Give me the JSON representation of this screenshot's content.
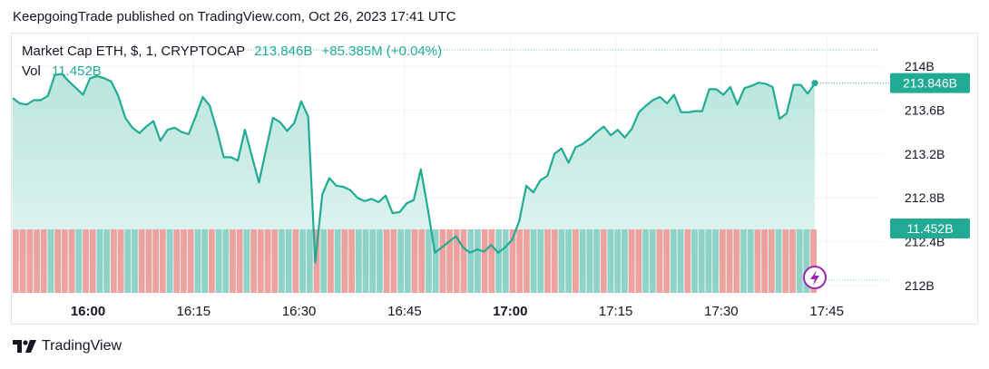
{
  "header": {
    "text": "KeepgoingTrade published on TradingView.com, Oct 26, 2023 17:41 UTC"
  },
  "legend": {
    "symbol": "Market Cap ETH, $, 1, CRYPTOCAP",
    "price": "213.846B",
    "change": "+85.385M (+0.04%)",
    "vol_label": "Vol",
    "vol_value": "11.452B"
  },
  "badges": {
    "price": "213.846B",
    "volume": "11.452B"
  },
  "footer": {
    "brand": "TradingView"
  },
  "colors": {
    "line": "#22ab94",
    "area_top": "#b9e6dc",
    "area_bottom": "#e9f7f4",
    "vol_up": "#8fd3c8",
    "vol_down": "#eea29f",
    "grid": "#f0f3fa",
    "badge": "#22ab94",
    "flash_icon": "#9c27b0"
  },
  "icons": {
    "flash": "lightning-icon",
    "logo": "tradingview-logo-icon"
  },
  "chart_data": {
    "type": "area",
    "x_unit": "minutes (UTC, Oct 26, 2023)",
    "x_ticks": [
      "16:00",
      "16:15",
      "16:30",
      "16:45",
      "17:00",
      "17:15",
      "17:30",
      "17:45"
    ],
    "x_ticks_bold": [
      "16:00",
      "17:00"
    ],
    "y_unit": "USD billions",
    "y_ticks": [
      "214B",
      "213.6B",
      "213.2B",
      "212.8B",
      "212.4B",
      "212B"
    ],
    "ylim": [
      212.0,
      214.0
    ],
    "last_value": 213.846,
    "series": [
      {
        "values": [
          213.71,
          213.66,
          213.65,
          213.69,
          213.69,
          213.73,
          213.92,
          213.93,
          213.86,
          213.8,
          213.74,
          213.89,
          213.91,
          213.89,
          213.86,
          213.73,
          213.53,
          213.44,
          213.39,
          213.45,
          213.5,
          213.32,
          213.42,
          213.44,
          213.4,
          213.38,
          213.54,
          213.72,
          213.64,
          213.42,
          213.17,
          213.17,
          213.14,
          213.42,
          213.18,
          212.94,
          213.24,
          213.53,
          213.49,
          213.41,
          213.48,
          213.68,
          213.54,
          212.21,
          212.83,
          212.98,
          212.91,
          212.9,
          212.87,
          212.8,
          212.77,
          212.79,
          212.76,
          212.82,
          212.66,
          212.67,
          212.75,
          212.78,
          213.06,
          212.7,
          212.3,
          212.35,
          212.4,
          212.45,
          212.35,
          212.3,
          212.33,
          212.31,
          212.37,
          212.3,
          212.35,
          212.42,
          212.59,
          212.91,
          212.85,
          212.96,
          213.0,
          213.2,
          213.25,
          213.12,
          213.26,
          213.29,
          213.34,
          213.4,
          213.45,
          213.37,
          213.42,
          213.35,
          213.43,
          213.58,
          213.64,
          213.69,
          213.72,
          213.66,
          213.74,
          213.58,
          213.58,
          213.59,
          213.59,
          213.79,
          213.79,
          213.74,
          213.81,
          213.65,
          213.8,
          213.82,
          213.85,
          213.84,
          213.81,
          213.52,
          213.57,
          213.83,
          213.83,
          213.75,
          213.846
        ]
      }
    ],
    "volume": {
      "label": "Vol",
      "last_value": "11.452B",
      "colors_sequence": "dddddudddudduudduudddduddduuduuddudddduuduudududduuuudduudduudddduudduuddduudduuduuuduuudduudduuduuuuddduudddudduuddddudduuuu"
    }
  }
}
